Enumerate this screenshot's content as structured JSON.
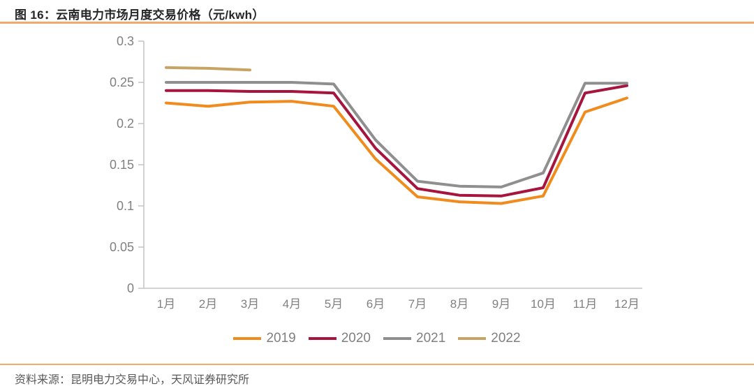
{
  "header": {
    "title": "图 16：云南电力市场月度交易价格（元/kwh）"
  },
  "footer": {
    "source": "资料来源：昆明电力交易中心，天风证券研究所"
  },
  "colors": {
    "accent_rule": "#F2A96C",
    "axis_line": "#C4C4C4",
    "tick_text": "#808080",
    "legend_text": "#7F7F7F",
    "title_text": "#262626",
    "source_text": "#595959"
  },
  "chart_data": {
    "type": "line",
    "title": "云南电力市场月度交易价格（元/kwh）",
    "xlabel": "",
    "ylabel": "",
    "categories": [
      "1月",
      "2月",
      "3月",
      "4月",
      "5月",
      "6月",
      "7月",
      "8月",
      "9月",
      "10月",
      "11月",
      "12月"
    ],
    "series": [
      {
        "name": "2019",
        "color": "#F08C1E",
        "values": [
          0.225,
          0.221,
          0.226,
          0.227,
          0.221,
          0.157,
          0.111,
          0.105,
          0.103,
          0.112,
          0.214,
          0.231
        ]
      },
      {
        "name": "2020",
        "color": "#A5153D",
        "values": [
          0.24,
          0.24,
          0.239,
          0.239,
          0.237,
          0.17,
          0.121,
          0.113,
          0.112,
          0.122,
          0.237,
          0.246
        ]
      },
      {
        "name": "2021",
        "color": "#8F8F8F",
        "values": [
          0.25,
          0.25,
          0.25,
          0.25,
          0.248,
          0.18,
          0.13,
          0.124,
          0.123,
          0.14,
          0.249,
          0.249
        ]
      },
      {
        "name": "2022",
        "color": "#C8A464",
        "values": [
          0.268,
          0.267,
          0.265,
          null,
          null,
          null,
          null,
          null,
          null,
          null,
          null,
          null
        ]
      }
    ],
    "ylim": [
      0,
      0.3
    ],
    "yticks": [
      0,
      0.05,
      0.1,
      0.15,
      0.2,
      0.25,
      0.3
    ],
    "grid": false,
    "legend_position": "bottom"
  }
}
